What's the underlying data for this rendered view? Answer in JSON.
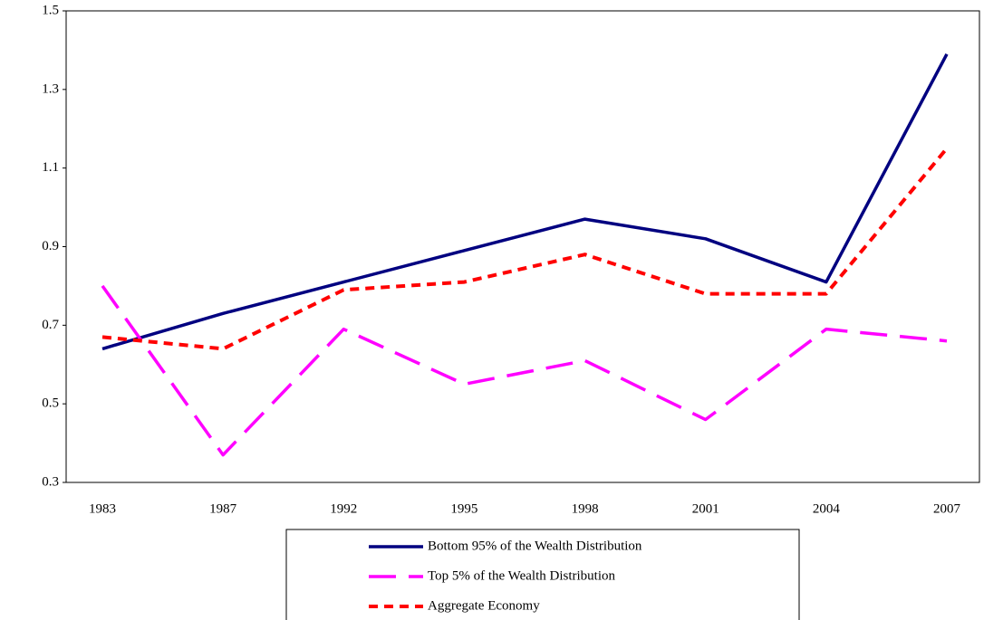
{
  "chart_data": {
    "type": "line",
    "categories": [
      "1983",
      "1987",
      "1992",
      "1995",
      "1998",
      "2001",
      "2004",
      "2007"
    ],
    "series": [
      {
        "name": "Bottom 95% of the Wealth Distribution",
        "color": "#000080",
        "values": [
          0.64,
          0.73,
          0.81,
          0.89,
          0.97,
          0.92,
          0.81,
          1.39
        ]
      },
      {
        "name": "Top 5% of the Wealth Distribution",
        "color": "#ff00ff",
        "values": [
          0.8,
          0.37,
          0.69,
          0.55,
          0.61,
          0.46,
          0.69,
          0.66
        ]
      },
      {
        "name": "Aggregate Economy",
        "color": "#ff0000",
        "values": [
          0.67,
          0.64,
          0.79,
          0.81,
          0.88,
          0.78,
          0.78,
          1.15
        ]
      }
    ],
    "ylim": [
      0.3,
      1.5
    ],
    "yticks": [
      0.3,
      0.5,
      0.7,
      0.9,
      1.1,
      1.3,
      1.5
    ],
    "grid": false,
    "legend": "bottom"
  }
}
